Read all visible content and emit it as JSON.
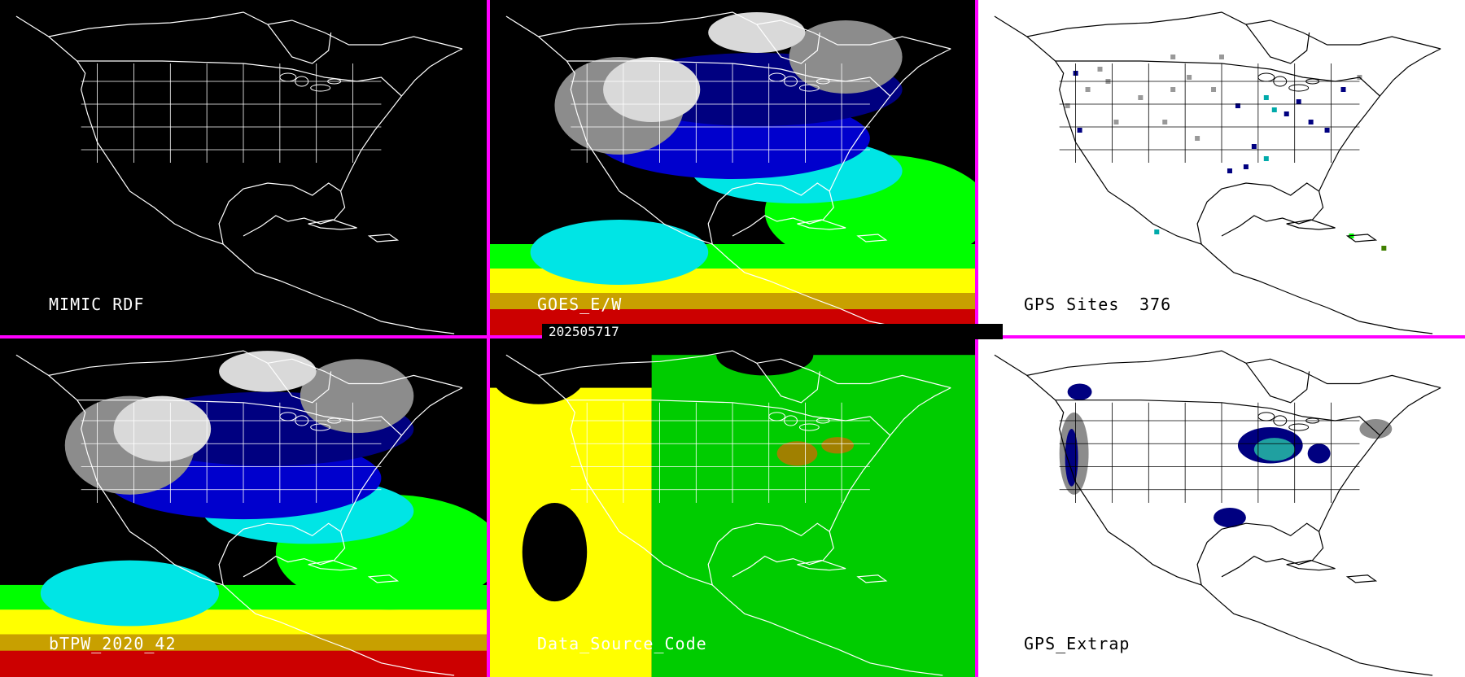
{
  "timestamp": "202505717",
  "panels": [
    {
      "id": "mimic",
      "label": "MIMIC RDF",
      "count": "",
      "theme": "dark",
      "fill": "none"
    },
    {
      "id": "goes",
      "label": "GOES_E/W",
      "count": "",
      "theme": "dark",
      "fill": "tpw"
    },
    {
      "id": "gps",
      "label": "GPS Sites",
      "count": "376",
      "theme": "light",
      "fill": "sites"
    },
    {
      "id": "btpw",
      "label": "bTPW_2020_42",
      "count": "",
      "theme": "dark",
      "fill": "tpw"
    },
    {
      "id": "dsc",
      "label": "Data_Source_Code",
      "count": "",
      "theme": "dark",
      "fill": "source"
    },
    {
      "id": "extrap",
      "label": "GPS_Extrap",
      "count": "",
      "theme": "light",
      "fill": "extrap"
    }
  ],
  "colors": {
    "divider": "#ff00ff",
    "tpw_scale": [
      "#d9d9d9",
      "#8c8c8c",
      "#000080",
      "#0000cd",
      "#00e5e5",
      "#00ff00",
      "#9acd32",
      "#ffff00",
      "#c8a000",
      "#cc0000"
    ],
    "source_codes": {
      "geo_west": "#ffff00",
      "geo_east": "#00cc00",
      "mixed": "#a08000"
    }
  }
}
